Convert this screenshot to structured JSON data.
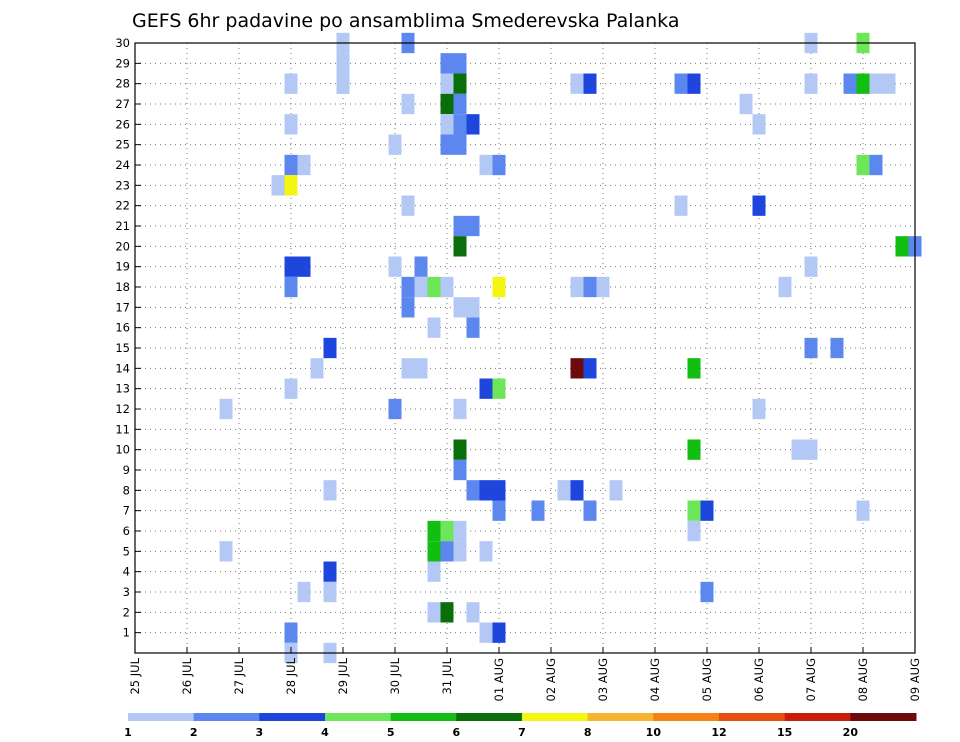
{
  "chart_data": {
    "type": "heatmap",
    "title": "GEFS 6hr padavine po ansamblima Smederevska Palanka",
    "xlabel": "",
    "ylabel": "",
    "x_tick_labels": [
      "25 JUL",
      "26 JUL",
      "27 JUL",
      "28 JUL",
      "29 JUL",
      "30 JUL",
      "31 JUL",
      "01 AUG",
      "02 AUG",
      "03 AUG",
      "04 AUG",
      "05 AUG",
      "06 AUG",
      "07 AUG",
      "08 AUG",
      "09 AUG"
    ],
    "x_range_days": [
      0,
      15
    ],
    "y_tick_labels": [
      "1",
      "2",
      "3",
      "4",
      "5",
      "6",
      "7",
      "8",
      "9",
      "10",
      "11",
      "12",
      "13",
      "14",
      "15",
      "16",
      "17",
      "18",
      "19",
      "20",
      "21",
      "22",
      "23",
      "24",
      "25",
      "26",
      "27",
      "28",
      "29",
      "30"
    ],
    "y_range": [
      0,
      30
    ],
    "grid": true,
    "colorbar": {
      "position": "bottom",
      "labels": [
        "1",
        "2",
        "3",
        "4",
        "5",
        "6",
        "7",
        "8",
        "10",
        "12",
        "15",
        "20"
      ],
      "colors": [
        "#b4c8f5",
        "#5b87ee",
        "#1e46dc",
        "#6ee65a",
        "#12be12",
        "#0a6e0a",
        "#f5f514",
        "#f5b432",
        "#f58214",
        "#e65014",
        "#c81e0a",
        "#6e0a0a"
      ]
    },
    "cells": [
      [
        4,
        28,
        0
      ],
      [
        4,
        29,
        0
      ],
      [
        4,
        30,
        0
      ],
      [
        5.25,
        30,
        1
      ],
      [
        13,
        30,
        0
      ],
      [
        14,
        30,
        3
      ],
      [
        3,
        28,
        0
      ],
      [
        4,
        28,
        0
      ],
      [
        6,
        29,
        1
      ],
      [
        6.25,
        29,
        1
      ],
      [
        6,
        28,
        0
      ],
      [
        6.25,
        28,
        5
      ],
      [
        8.5,
        28,
        0
      ],
      [
        8.75,
        28,
        2
      ],
      [
        10.5,
        28,
        1
      ],
      [
        10.75,
        28,
        2
      ],
      [
        13,
        28,
        0
      ],
      [
        13.75,
        28,
        1
      ],
      [
        14,
        28,
        4
      ],
      [
        14.25,
        28,
        0
      ],
      [
        14.5,
        28,
        0
      ],
      [
        5.25,
        27,
        0
      ],
      [
        6,
        27,
        5
      ],
      [
        6.25,
        27,
        1
      ],
      [
        11.75,
        27,
        0
      ],
      [
        3,
        26,
        0
      ],
      [
        6,
        26,
        0
      ],
      [
        6.25,
        26,
        1
      ],
      [
        6.5,
        26,
        2
      ],
      [
        12,
        26,
        0
      ],
      [
        5,
        25,
        0
      ],
      [
        6,
        25,
        1
      ],
      [
        6.25,
        25,
        1
      ],
      [
        3,
        24,
        1
      ],
      [
        3.25,
        24,
        0
      ],
      [
        6.75,
        24,
        0
      ],
      [
        7,
        24,
        1
      ],
      [
        14,
        24,
        3
      ],
      [
        14.25,
        24,
        1
      ],
      [
        2.75,
        23,
        0
      ],
      [
        3,
        23,
        6
      ],
      [
        5.25,
        22,
        0
      ],
      [
        10.5,
        22,
        0
      ],
      [
        12,
        22,
        2
      ],
      [
        6.25,
        21,
        1
      ],
      [
        6.5,
        21,
        1
      ],
      [
        6.25,
        20,
        5
      ],
      [
        14.75,
        20,
        4
      ],
      [
        15,
        20,
        1
      ],
      [
        3,
        19,
        2
      ],
      [
        3.25,
        19,
        2
      ],
      [
        5,
        19,
        0
      ],
      [
        5.5,
        19,
        1
      ],
      [
        13,
        19,
        0
      ],
      [
        3,
        18,
        1
      ],
      [
        5.25,
        18,
        1
      ],
      [
        5.5,
        18,
        0
      ],
      [
        5.75,
        18,
        3
      ],
      [
        6,
        18,
        0
      ],
      [
        7,
        18,
        6
      ],
      [
        8.5,
        18,
        0
      ],
      [
        8.75,
        18,
        1
      ],
      [
        9,
        18,
        0
      ],
      [
        12.5,
        18,
        0
      ],
      [
        5.25,
        17,
        1
      ],
      [
        6.25,
        17,
        0
      ],
      [
        6.5,
        17,
        0
      ],
      [
        5.75,
        16,
        0
      ],
      [
        6.5,
        16,
        1
      ],
      [
        3.75,
        15,
        2
      ],
      [
        13,
        15,
        1
      ],
      [
        13.5,
        15,
        1
      ],
      [
        3.5,
        14,
        0
      ],
      [
        5.25,
        14,
        0
      ],
      [
        5.5,
        14,
        0
      ],
      [
        8.5,
        14,
        11
      ],
      [
        8.75,
        14,
        2
      ],
      [
        10.75,
        14,
        4
      ],
      [
        3,
        13,
        0
      ],
      [
        6.75,
        13,
        2
      ],
      [
        7,
        13,
        3
      ],
      [
        1.75,
        12,
        0
      ],
      [
        5,
        12,
        1
      ],
      [
        6.25,
        12,
        0
      ],
      [
        12,
        12,
        0
      ],
      [
        6.25,
        10,
        5
      ],
      [
        10.75,
        10,
        4
      ],
      [
        12.75,
        10,
        0
      ],
      [
        13,
        10,
        0
      ],
      [
        6.25,
        9,
        1
      ],
      [
        3.75,
        8,
        0
      ],
      [
        6.5,
        8,
        1
      ],
      [
        6.75,
        8,
        2
      ],
      [
        7,
        8,
        2
      ],
      [
        8.25,
        8,
        0
      ],
      [
        8.5,
        8,
        2
      ],
      [
        9.25,
        8,
        0
      ],
      [
        7,
        7,
        1
      ],
      [
        7.75,
        7,
        1
      ],
      [
        8.75,
        7,
        1
      ],
      [
        10.75,
        7,
        3
      ],
      [
        11,
        7,
        2
      ],
      [
        14,
        7,
        0
      ],
      [
        5.75,
        6,
        4
      ],
      [
        6,
        6,
        3
      ],
      [
        6.25,
        6,
        0
      ],
      [
        10.75,
        6,
        0
      ],
      [
        1.75,
        5,
        0
      ],
      [
        5.75,
        5,
        4
      ],
      [
        6,
        5,
        1
      ],
      [
        6.25,
        5,
        0
      ],
      [
        6.75,
        5,
        0
      ],
      [
        3.75,
        4,
        2
      ],
      [
        5.75,
        4,
        0
      ],
      [
        3.25,
        3,
        0
      ],
      [
        3.75,
        3,
        0
      ],
      [
        11,
        3,
        1
      ],
      [
        5.75,
        2,
        0
      ],
      [
        6,
        2,
        5
      ],
      [
        6.5,
        2,
        0
      ],
      [
        3,
        1,
        1
      ],
      [
        6.75,
        1,
        0
      ],
      [
        7,
        1,
        2
      ],
      [
        3,
        0,
        0
      ],
      [
        3.75,
        0,
        0
      ]
    ]
  }
}
